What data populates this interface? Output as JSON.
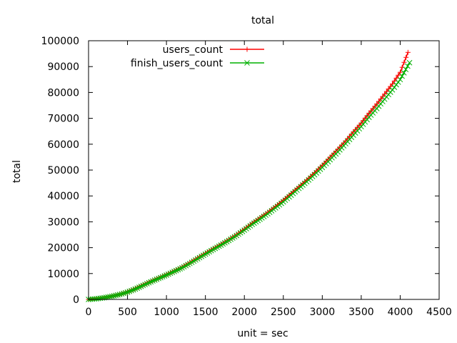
{
  "chart_data": {
    "type": "line",
    "title": "total",
    "xlabel": "unit = sec",
    "ylabel": "total",
    "xlim": [
      0,
      4500
    ],
    "ylim": [
      0,
      100000
    ],
    "xticks": [
      "0",
      "500",
      "1000",
      "1500",
      "2000",
      "2500",
      "3000",
      "3500",
      "4000",
      "4500"
    ],
    "yticks": [
      "0",
      "10000",
      "20000",
      "30000",
      "40000",
      "50000",
      "60000",
      "70000",
      "80000",
      "90000",
      "100000"
    ],
    "grid": false,
    "legend_position": "top-center",
    "series": [
      {
        "name": "users_count",
        "color": "#ff0000",
        "marker": "plus",
        "x": [
          0,
          100,
          200,
          300,
          400,
          500,
          600,
          700,
          800,
          900,
          1000,
          1100,
          1200,
          1300,
          1400,
          1500,
          1600,
          1700,
          1800,
          1900,
          2000,
          2100,
          2200,
          2300,
          2400,
          2500,
          2600,
          2700,
          2800,
          2900,
          3000,
          3100,
          3200,
          3300,
          3400,
          3500,
          3600,
          3700,
          3800,
          3900,
          4000,
          4100
        ],
        "y": [
          0,
          300,
          700,
          1300,
          2000,
          2900,
          4200,
          5600,
          7000,
          8300,
          9600,
          11000,
          12500,
          14200,
          16000,
          17800,
          19600,
          21300,
          23100,
          25000,
          27200,
          29500,
          31600,
          33700,
          36000,
          38400,
          41000,
          43600,
          46200,
          49000,
          51900,
          55000,
          58100,
          61300,
          64800,
          68200,
          72000,
          75600,
          79400,
          83300,
          87800,
          95500
        ]
      },
      {
        "name": "finish_users_count",
        "color": "#00b000",
        "marker": "cross",
        "x": [
          0,
          100,
          200,
          300,
          400,
          500,
          600,
          700,
          800,
          900,
          1000,
          1100,
          1200,
          1300,
          1400,
          1500,
          1600,
          1700,
          1800,
          1900,
          2000,
          2100,
          2200,
          2300,
          2400,
          2500,
          2600,
          2700,
          2800,
          2900,
          3000,
          3100,
          3200,
          3300,
          3400,
          3500,
          3600,
          3700,
          3800,
          3900,
          4000,
          4120
        ],
        "y": [
          0,
          250,
          650,
          1200,
          1900,
          2800,
          4000,
          5400,
          6800,
          8100,
          9400,
          10800,
          12200,
          13900,
          15700,
          17500,
          19300,
          21000,
          22800,
          24700,
          26800,
          29000,
          31000,
          33100,
          35400,
          37700,
          40300,
          42900,
          45500,
          48200,
          51000,
          54000,
          57000,
          60200,
          63500,
          66800,
          70400,
          73800,
          77400,
          81000,
          85000,
          91500
        ]
      }
    ]
  }
}
